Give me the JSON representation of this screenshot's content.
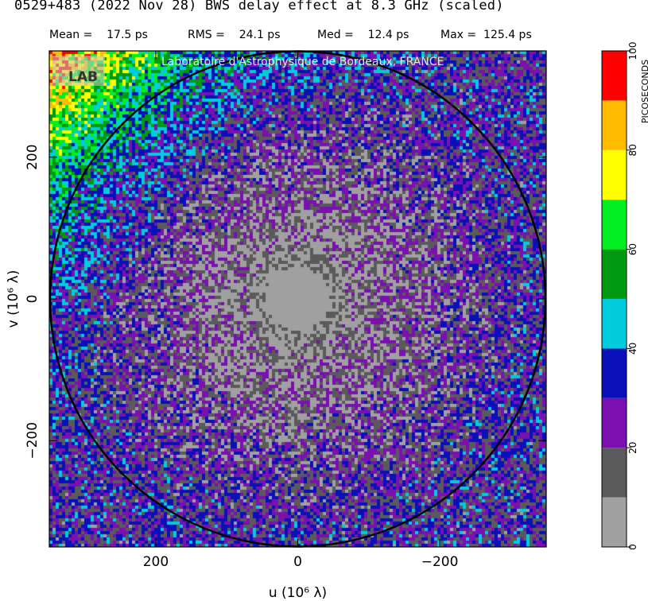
{
  "title": "0529+483  (2022 Nov 28)   BWS delay effect at  8.3 GHz (scaled)",
  "stats": [
    {
      "label": "Mean =",
      "value": "17.5 ps"
    },
    {
      "label": "RMS =",
      "value": "24.1 ps"
    },
    {
      "label": "Med =",
      "value": "12.4 ps"
    },
    {
      "label": "Max =",
      "value": "125.4 ps"
    }
  ],
  "watermark": "Laboratoire d'Astrophysique de Bordeaux, FRANCE",
  "logo_text": "LAB",
  "chart_data": {
    "type": "heatmap",
    "xlabel": "u  (10⁶ λ)",
    "ylabel": "v  (10⁶ λ)",
    "x_range": [
      350,
      -350
    ],
    "y_range": [
      -350,
      350
    ],
    "x_ticks": [
      200,
      0,
      -200
    ],
    "x_tick_labels": [
      "200",
      "0",
      "−200"
    ],
    "y_ticks": [
      200,
      0,
      -200
    ],
    "y_tick_labels": [
      "200",
      "0",
      "−200"
    ],
    "circle_radius": 350,
    "colorbar": {
      "label": "PICOSECONDS",
      "range": [
        0,
        100
      ],
      "ticks": [
        0,
        20,
        40,
        60,
        80,
        100
      ],
      "bins": [
        {
          "from": 0,
          "to": 10,
          "color": "#a0a0a0"
        },
        {
          "from": 10,
          "to": 20,
          "color": "#5a5a5a"
        },
        {
          "from": 20,
          "to": 30,
          "color": "#7a10b0"
        },
        {
          "from": 30,
          "to": 40,
          "color": "#0a10b8"
        },
        {
          "from": 40,
          "to": 50,
          "color": "#00ccdd"
        },
        {
          "from": 50,
          "to": 60,
          "color": "#009a10"
        },
        {
          "from": 60,
          "to": 70,
          "color": "#00ee22"
        },
        {
          "from": 70,
          "to": 80,
          "color": "#ffff00"
        },
        {
          "from": 80,
          "to": 90,
          "color": "#ffbb00"
        },
        {
          "from": 90,
          "to": 100,
          "color": "#ff0000"
        }
      ]
    }
  }
}
